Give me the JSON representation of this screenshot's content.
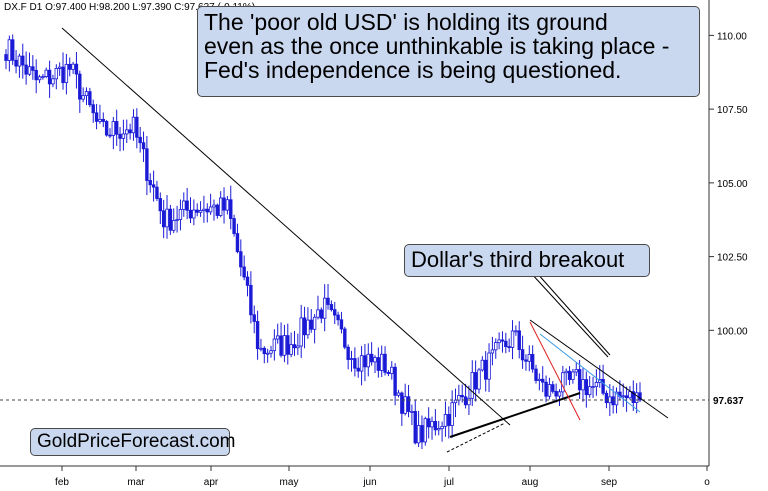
{
  "header": {
    "ohlc_text": "DX.F  D1  O:97.400  H:98.200  L:97.390  C:97.637  (-0.11%)"
  },
  "callouts": {
    "title_lines": [
      "The 'poor old USD' is holding its ground",
      "even as the once unthinkable is taking place -",
      " Fed's independence is being questioned."
    ],
    "annotation": "Dollar's third breakout",
    "brand": "GoldPriceForecast.com"
  },
  "chart_data": {
    "type": "candlestick",
    "instrument": "DX.F",
    "timeframe": "D1",
    "last_price": 97.637,
    "last_price_label": "97.637",
    "ylim": [
      95.4,
      111.2
    ],
    "y_ticks": [
      {
        "value": 110.0,
        "label": "110.00"
      },
      {
        "value": 107.5,
        "label": "107.50"
      },
      {
        "value": 105.0,
        "label": "105.00"
      },
      {
        "value": 102.5,
        "label": "102.50"
      },
      {
        "value": 100.0,
        "label": "100.00"
      }
    ],
    "x_ticks": [
      "feb",
      "mar",
      "apr",
      "may",
      "jun",
      "jul",
      "aug",
      "sep",
      "o"
    ],
    "bar_count": 190,
    "monthly_waypoints": [
      {
        "month": "jan",
        "close": 109.6
      },
      {
        "month": "jan",
        "close": 108.4
      },
      {
        "month": "feb",
        "close": 108.9
      },
      {
        "month": "feb",
        "close": 106.7
      },
      {
        "month": "mar",
        "close": 106.9
      },
      {
        "month": "mar",
        "close": 103.7
      },
      {
        "month": "mar",
        "close": 104.2
      },
      {
        "month": "apr",
        "close": 104.1
      },
      {
        "month": "apr",
        "close": 99.3
      },
      {
        "month": "apr",
        "close": 99.6
      },
      {
        "month": "may",
        "close": 100.8
      },
      {
        "month": "may",
        "close": 99.1
      },
      {
        "month": "jun",
        "close": 98.8
      },
      {
        "month": "jun",
        "close": 96.4
      },
      {
        "month": "jul",
        "close": 97.2
      },
      {
        "month": "jul",
        "close": 98.6
      },
      {
        "month": "aug",
        "close": 99.8
      },
      {
        "month": "aug",
        "close": 97.9
      },
      {
        "month": "aug",
        "close": 98.3
      },
      {
        "month": "sep",
        "close": 97.8
      },
      {
        "month": "sep",
        "close": 97.64
      }
    ],
    "colors": {
      "up": "#1b1bd6",
      "down": "#1b1bd6",
      "trendline": "#000000",
      "red_line": "#e02020",
      "blue_line": "#3a9be8"
    }
  }
}
